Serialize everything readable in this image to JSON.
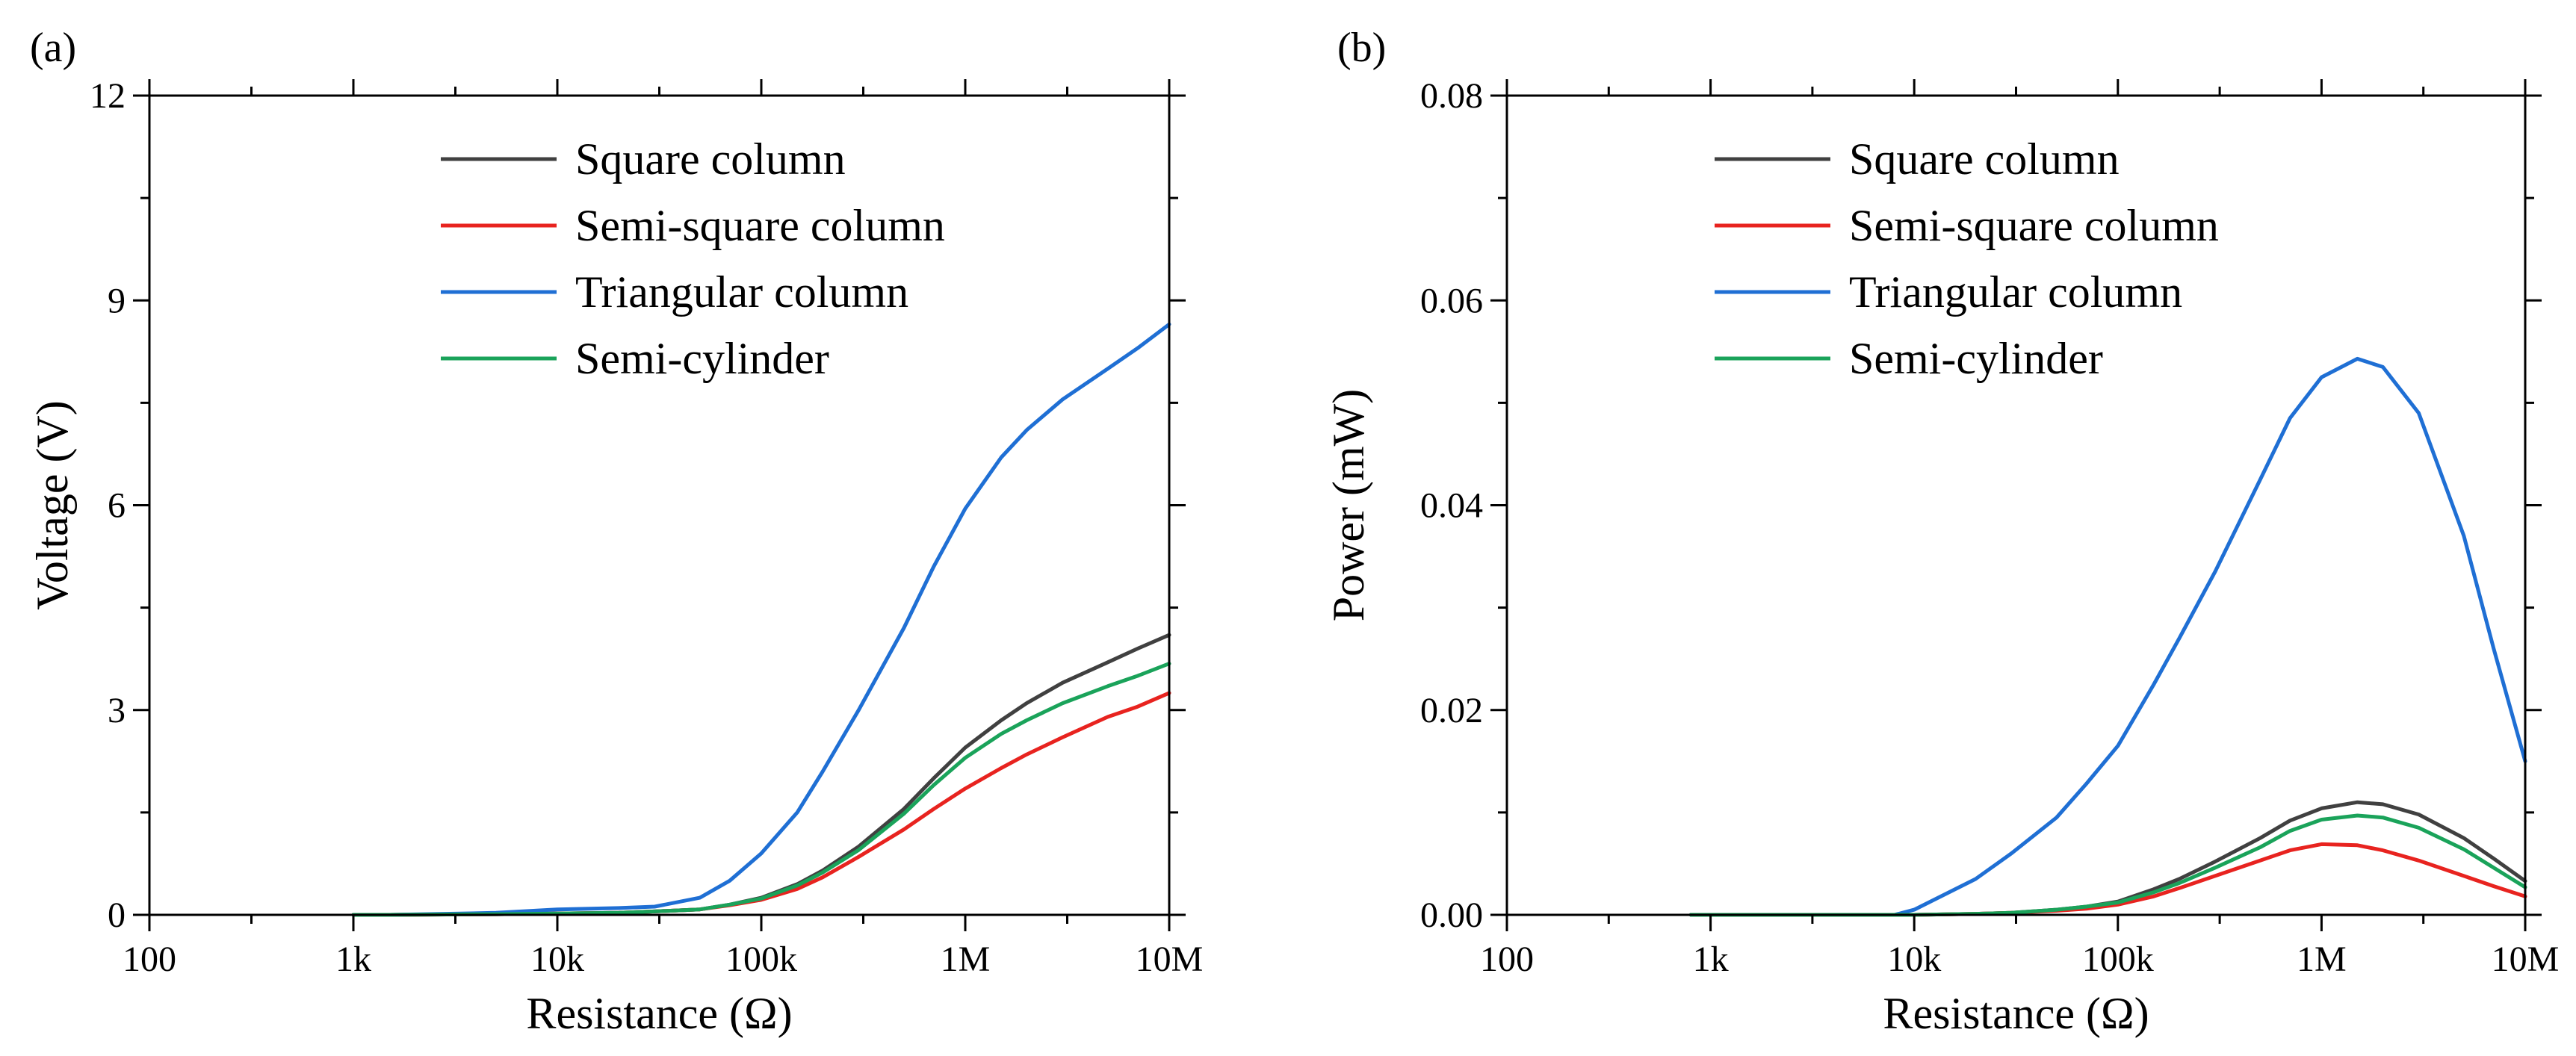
{
  "chart_data": [
    {
      "type": "line",
      "panel_label": "(a)",
      "title": "",
      "xlabel": "Resistance (Ω)",
      "ylabel": "Voltage (V)",
      "xscale": "log",
      "xlim": [
        100,
        10000000
      ],
      "ylim": [
        0,
        12
      ],
      "x_ticks": [
        100,
        1000,
        10000,
        100000,
        1000000,
        10000000
      ],
      "x_tick_labels": [
        "100",
        "1k",
        "10k",
        "100k",
        "1M",
        "10M"
      ],
      "y_ticks": [
        0,
        3,
        6,
        9,
        12
      ],
      "y_tick_labels": [
        "0",
        "3",
        "6",
        "9",
        "12"
      ],
      "legend_position": "top-center",
      "x": [
        1000,
        1500,
        5000,
        10000,
        20000,
        30000,
        50000,
        70000,
        100000,
        150000,
        200000,
        300000,
        500000,
        700000,
        1000000,
        1500000,
        2000000,
        3000000,
        5000000,
        7000000,
        10000000
      ],
      "series": [
        {
          "name": "Square column",
          "color": "#404040",
          "values": [
            0,
            0,
            0.01,
            0.02,
            0.03,
            0.05,
            0.08,
            0.15,
            0.25,
            0.45,
            0.65,
            1.0,
            1.55,
            2.0,
            2.45,
            2.85,
            3.1,
            3.4,
            3.7,
            3.9,
            4.1
          ]
        },
        {
          "name": "Semi-square column",
          "color": "#e8231f",
          "values": [
            0,
            0,
            0.01,
            0.02,
            0.03,
            0.05,
            0.08,
            0.14,
            0.22,
            0.38,
            0.55,
            0.85,
            1.25,
            1.55,
            1.85,
            2.15,
            2.35,
            2.6,
            2.9,
            3.05,
            3.25
          ]
        },
        {
          "name": "Triangular column",
          "color": "#1f6fd4",
          "values": [
            0,
            0,
            0.03,
            0.08,
            0.1,
            0.12,
            0.25,
            0.5,
            0.9,
            1.5,
            2.1,
            3.0,
            4.2,
            5.1,
            5.95,
            6.7,
            7.1,
            7.55,
            8.0,
            8.3,
            8.65
          ]
        },
        {
          "name": "Semi-cylinder",
          "color": "#1aa35a",
          "values": [
            0,
            0,
            0.01,
            0.02,
            0.03,
            0.05,
            0.08,
            0.15,
            0.24,
            0.43,
            0.62,
            0.95,
            1.48,
            1.9,
            2.3,
            2.65,
            2.85,
            3.1,
            3.35,
            3.5,
            3.68
          ]
        }
      ]
    },
    {
      "type": "line",
      "panel_label": "(b)",
      "title": "",
      "xlabel": "Resistance (Ω)",
      "ylabel": "Power (mW)",
      "xscale": "log",
      "xlim": [
        100,
        10000000
      ],
      "ylim": [
        0,
        0.08
      ],
      "x_ticks": [
        100,
        1000,
        10000,
        100000,
        1000000,
        10000000
      ],
      "x_tick_labels": [
        "100",
        "1k",
        "10k",
        "100k",
        "1M",
        "10M"
      ],
      "y_ticks": [
        0,
        0.02,
        0.04,
        0.06,
        0.08
      ],
      "y_tick_labels": [
        "0.00",
        "0.02",
        "0.04",
        "0.06",
        "0.08"
      ],
      "legend_position": "top-center",
      "x": [
        800,
        1400,
        5000,
        8000,
        10000,
        20000,
        30000,
        50000,
        70000,
        100000,
        150000,
        200000,
        300000,
        500000,
        700000,
        1000000,
        1500000,
        2000000,
        3000000,
        5000000,
        7000000,
        10000000
      ],
      "series": [
        {
          "name": "Square column",
          "color": "#404040",
          "values": [
            0,
            0,
            0,
            0,
            0,
            0.0001,
            0.0002,
            0.0005,
            0.0008,
            0.0013,
            0.0025,
            0.0035,
            0.0052,
            0.0075,
            0.0092,
            0.0104,
            0.011,
            0.0108,
            0.0098,
            0.0075,
            0.0055,
            0.0033
          ]
        },
        {
          "name": "Semi-square column",
          "color": "#e8231f",
          "values": [
            0,
            0,
            0,
            0,
            0,
            0.0001,
            0.0002,
            0.0004,
            0.0006,
            0.001,
            0.0018,
            0.0026,
            0.0038,
            0.0053,
            0.0063,
            0.0069,
            0.0068,
            0.0063,
            0.0053,
            0.0038,
            0.0028,
            0.0018
          ]
        },
        {
          "name": "Triangular column",
          "color": "#1f6fd4",
          "values": [
            0,
            0,
            0,
            0,
            0.0005,
            0.0035,
            0.006,
            0.0095,
            0.0128,
            0.0165,
            0.0225,
            0.027,
            0.0335,
            0.0425,
            0.0485,
            0.0525,
            0.0543,
            0.0535,
            0.049,
            0.037,
            0.026,
            0.015
          ]
        },
        {
          "name": "Semi-cylinder",
          "color": "#1aa35a",
          "values": [
            0,
            0,
            0,
            0,
            0,
            0.0001,
            0.0002,
            0.0005,
            0.0008,
            0.0012,
            0.0022,
            0.0031,
            0.0046,
            0.0066,
            0.0082,
            0.0093,
            0.0097,
            0.0095,
            0.0085,
            0.0064,
            0.0046,
            0.0027
          ]
        }
      ]
    }
  ]
}
